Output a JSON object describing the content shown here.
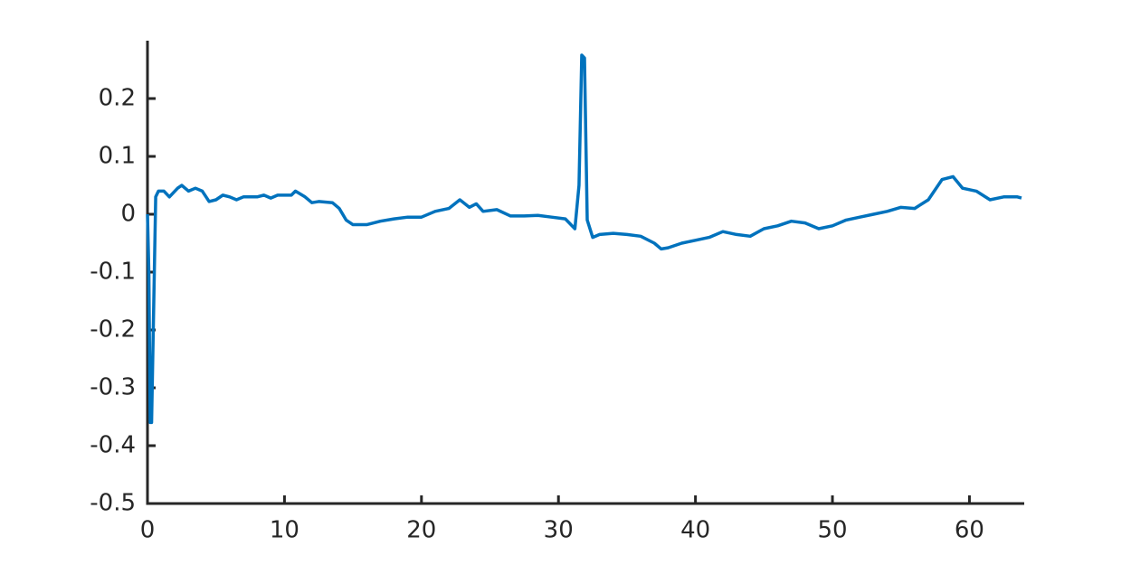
{
  "chart_data": {
    "type": "line",
    "xlim": [
      0,
      64
    ],
    "xticks": [
      0,
      10,
      20,
      30,
      40,
      50,
      60
    ],
    "ylim": [
      -0.5,
      0.3
    ],
    "yticks": [
      -0.5,
      -0.4,
      -0.3,
      -0.2,
      -0.1,
      0,
      0.1,
      0.2
    ],
    "grid": false,
    "series": [
      {
        "color": "#0072bd",
        "x": [
          0,
          0.1,
          0.2,
          0.3,
          0.5,
          0.6,
          0.8,
          1.2,
          1.6,
          2.2,
          2.5,
          3,
          3.5,
          4,
          4.5,
          5,
          5.5,
          6,
          6.5,
          7,
          8,
          8.5,
          9,
          9.5,
          10.5,
          10.8,
          11.5,
          12,
          12.5,
          13.5,
          14,
          14.5,
          15,
          16,
          17,
          18,
          19,
          20,
          21,
          22,
          22.8,
          23.5,
          24,
          24.5,
          25.5,
          26.5,
          27.5,
          28.5,
          29.5,
          30.5,
          31.2,
          31.5,
          31.7,
          31.9,
          32.1,
          32.5,
          33,
          34,
          35,
          36,
          37,
          37.5,
          38,
          39,
          40,
          41,
          42,
          43,
          44,
          45,
          46,
          47,
          48,
          49,
          50,
          51,
          52,
          53,
          54,
          55,
          56,
          57,
          58,
          58.8,
          59.5,
          60.5,
          61.5,
          62.5,
          63.5,
          63.8
        ],
        "values": [
          0,
          -0.1,
          -0.36,
          -0.36,
          -0.1,
          0.03,
          0.04,
          0.04,
          0.03,
          0.045,
          0.05,
          0.04,
          0.045,
          0.04,
          0.022,
          0.025,
          0.033,
          0.03,
          0.025,
          0.03,
          0.03,
          0.033,
          0.028,
          0.033,
          0.033,
          0.04,
          0.03,
          0.02,
          0.022,
          0.02,
          0.01,
          -0.01,
          -0.018,
          -0.018,
          -0.012,
          -0.008,
          -0.005,
          -0.005,
          0.005,
          0.01,
          0.025,
          0.012,
          0.018,
          0.005,
          0.008,
          -0.003,
          -0.003,
          -0.002,
          -0.005,
          -0.008,
          -0.025,
          0.05,
          0.275,
          0.27,
          -0.01,
          -0.04,
          -0.035,
          -0.033,
          -0.035,
          -0.038,
          -0.05,
          -0.06,
          -0.058,
          -0.05,
          -0.045,
          -0.04,
          -0.03,
          -0.035,
          -0.038,
          -0.025,
          -0.02,
          -0.012,
          -0.015,
          -0.025,
          -0.02,
          -0.01,
          -0.005,
          0,
          0.005,
          0.012,
          0.01,
          0.025,
          0.06,
          0.065,
          0.045,
          0.04,
          0.025,
          0.03,
          0.03,
          0.028
        ]
      }
    ]
  }
}
